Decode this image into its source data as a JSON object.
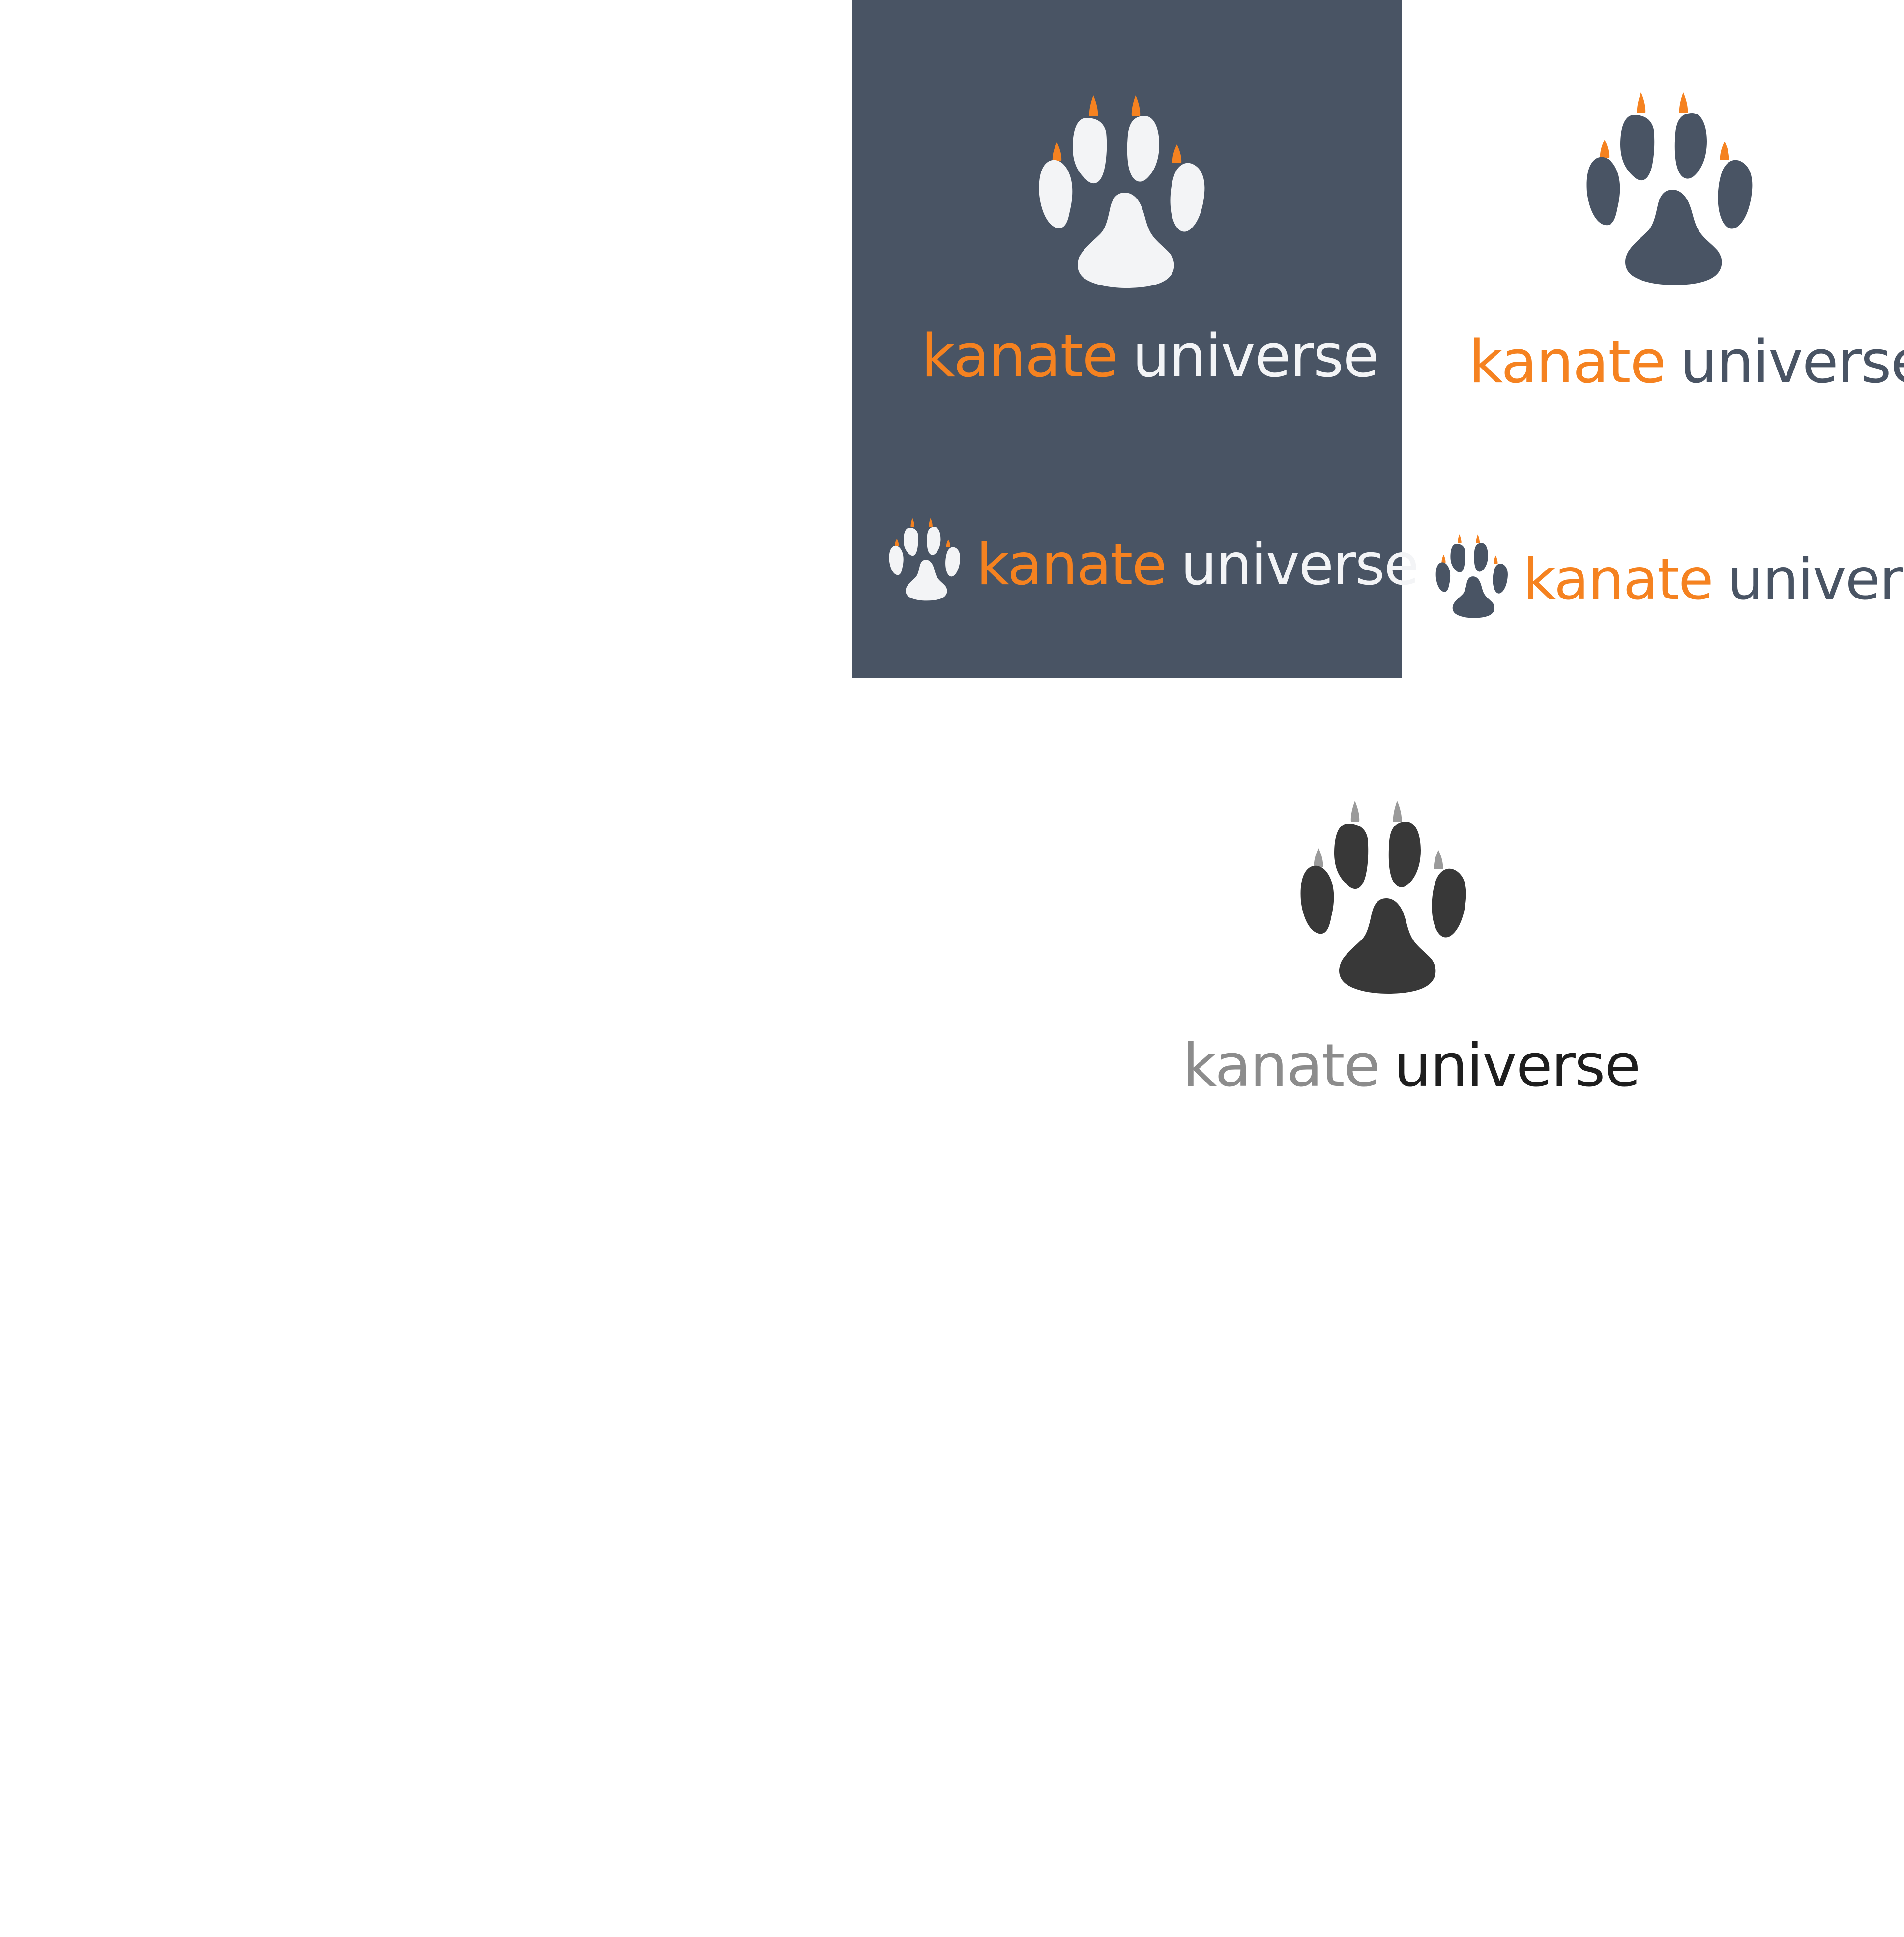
{
  "colors": {
    "slate": "#495464",
    "orange": "#f58220",
    "light": "#f3f4f6",
    "charcoal": "#383838",
    "grey": "#8c8c8c",
    "claw_grey": "#9a9a9a",
    "black": "#1e1e1e",
    "white": "#ffffff"
  },
  "logos": [
    {
      "id": "dark-panel-stacked",
      "word1": "kanate",
      "word2": "universe",
      "paw_icon": "paw-print-icon"
    },
    {
      "id": "light-stacked",
      "word1": "kanate",
      "word2": "universe",
      "paw_icon": "paw-print-icon"
    },
    {
      "id": "dark-panel-horizontal",
      "word1": "kanate",
      "word2": "universe",
      "paw_icon": "paw-print-icon"
    },
    {
      "id": "light-horizontal",
      "word1": "kanate",
      "word2": "universe",
      "paw_icon": "paw-print-icon"
    },
    {
      "id": "mono-stacked",
      "word1": "kanate",
      "word2": "universe",
      "paw_icon": "paw-print-icon"
    }
  ]
}
